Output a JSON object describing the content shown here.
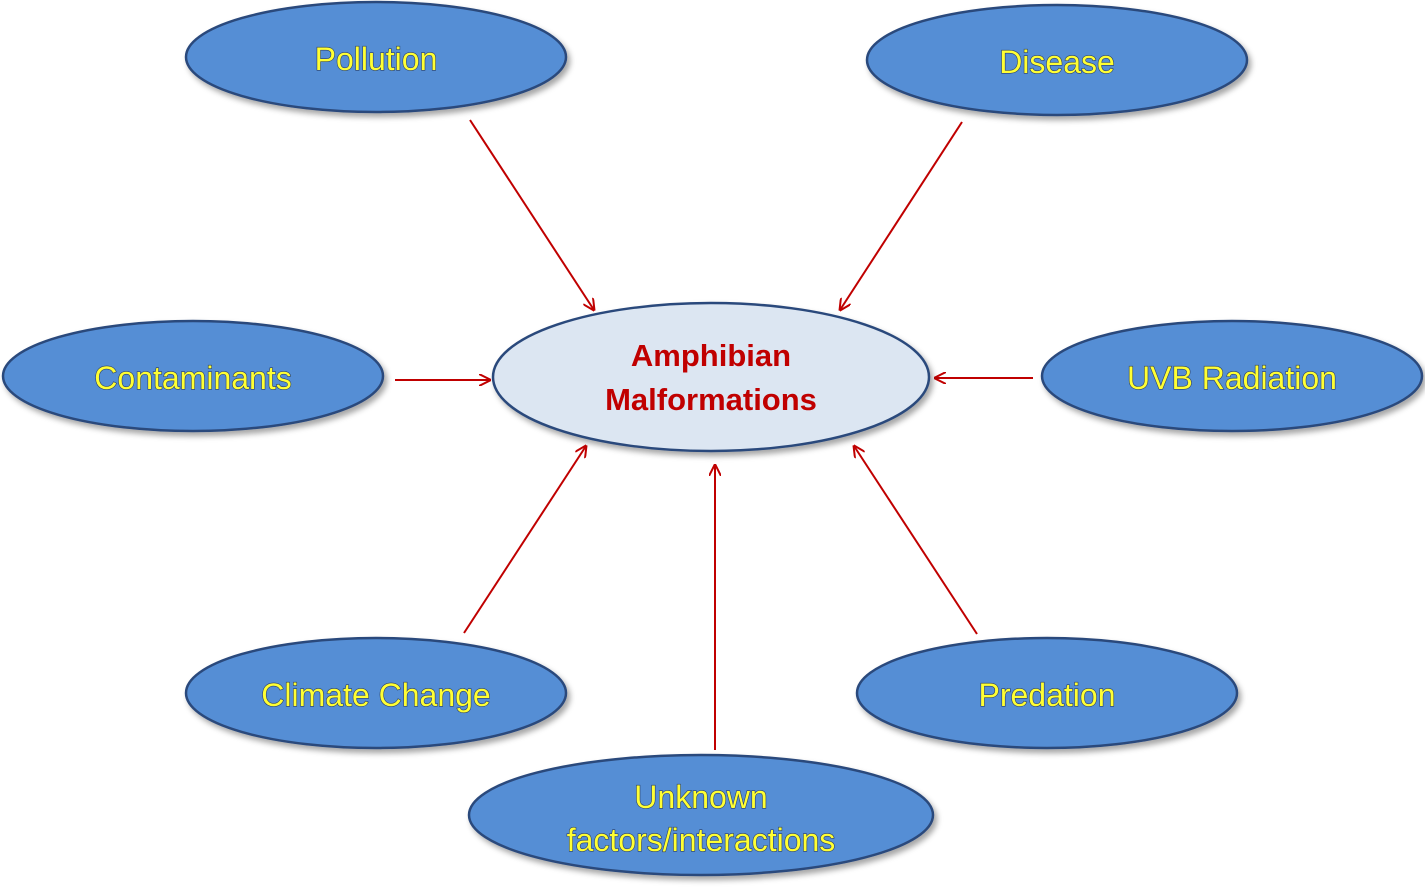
{
  "center": {
    "lines": [
      "Amphibian",
      "Malformations"
    ]
  },
  "factors": {
    "pollution": [
      "Pollution"
    ],
    "disease": [
      "Disease"
    ],
    "contaminants": [
      "Contaminants"
    ],
    "uvb": [
      "UVB Radiation"
    ],
    "climate": [
      "Climate Change"
    ],
    "predation": [
      "Predation"
    ],
    "unknown": [
      "Unknown",
      "factors/interactions"
    ]
  },
  "colors": {
    "node_fill": "#558ed5",
    "node_stroke": "#2c4a7c",
    "center_fill": "#dce6f2",
    "center_stroke": "#2c4a7c",
    "node_text": "#ffff33",
    "center_text": "#c00000",
    "arrow": "#c00000"
  }
}
